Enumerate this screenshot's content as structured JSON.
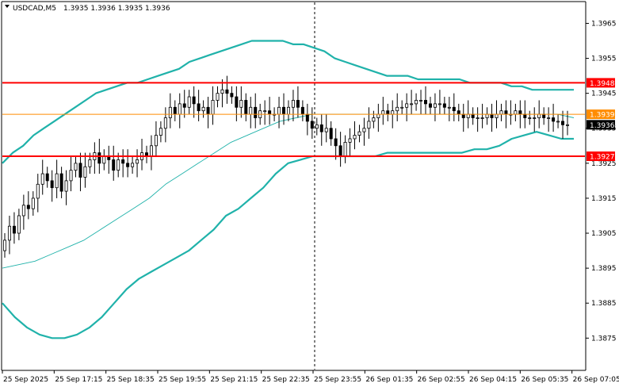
{
  "header": {
    "symbol_timeframe": "USDCAD,M5",
    "ohlc": "1.3935 1.3936 1.3935 1.3936"
  },
  "colors": {
    "background": "#ffffff",
    "candle": "#000000",
    "bollinger": "#20b2aa",
    "moving_average": "#20b2aa",
    "level_line": "#ff0000",
    "bid_line": "#ff8c00",
    "current_price_tag": "#000000",
    "level_tag": "#ff0000",
    "bid_tag": "#ff8c00"
  },
  "chart_data": {
    "type": "candlestick",
    "y_axis": {
      "range": [
        1.3866,
        1.3971
      ],
      "tick_labels": [
        "1.3965",
        "1.3955",
        "1.3945",
        "1.3935",
        "1.3925",
        "1.3915",
        "1.3905",
        "1.3895",
        "1.3885",
        "1.3875"
      ]
    },
    "x_axis": {
      "tick_labels": [
        "25 Sep 2025",
        "25 Sep 17:15",
        "25 Sep 18:35",
        "25 Sep 19:55",
        "25 Sep 21:15",
        "25 Sep 22:35",
        "25 Sep 23:55",
        "26 Sep 01:35",
        "26 Sep 02:55",
        "26 Sep 04:15",
        "26 Sep 05:35",
        "26 Sep 07:05"
      ]
    },
    "levels": [
      {
        "label": "1.3948",
        "value": 1.3948,
        "kind": "resistance"
      },
      {
        "label": "1.3927",
        "value": 1.3927,
        "kind": "support"
      }
    ],
    "bid_line": {
      "label": "1.3939",
      "value": 1.3939
    },
    "current_price": {
      "label": "1.3936",
      "value": 1.3936
    },
    "vertical_separator_label": "25 Sep 23:55",
    "close_series": [
      1.3903,
      1.3907,
      1.3905,
      1.391,
      1.3913,
      1.3912,
      1.3915,
      1.3919,
      1.3922,
      1.392,
      1.3918,
      1.3922,
      1.3917,
      1.392,
      1.3923,
      1.3925,
      1.3921,
      1.3924,
      1.3926,
      1.3928,
      1.3925,
      1.3927,
      1.3926,
      1.3923,
      1.3926,
      1.3925,
      1.3924,
      1.3925,
      1.3926,
      1.3928,
      1.3927,
      1.393,
      1.3933,
      1.3935,
      1.3938,
      1.3941,
      1.3939,
      1.3942,
      1.3941,
      1.3944,
      1.3942,
      1.394,
      1.3941,
      1.3939,
      1.3943,
      1.3945,
      1.3946,
      1.3945,
      1.3944,
      1.3941,
      1.3943,
      1.3939,
      1.3941,
      1.3938,
      1.394,
      1.394,
      1.3939,
      1.3939,
      1.3941,
      1.3939,
      1.3941,
      1.3943,
      1.3941,
      1.3939,
      1.3937,
      1.3935,
      1.3936,
      1.3934,
      1.3935,
      1.3932,
      1.393,
      1.3927,
      1.3931,
      1.3932,
      1.3933,
      1.3934,
      1.3935,
      1.3937,
      1.3938,
      1.3939,
      1.394,
      1.3939,
      1.394,
      1.3941,
      1.3941,
      1.3942,
      1.3942,
      1.3943,
      1.3943,
      1.3942,
      1.3941,
      1.3942,
      1.3942,
      1.3941,
      1.3941,
      1.394,
      1.3939,
      1.3938,
      1.3939,
      1.3938,
      1.3938,
      1.3938,
      1.3939,
      1.3938,
      1.3939,
      1.394,
      1.3939,
      1.3939,
      1.394,
      1.3939,
      1.3938,
      1.3938,
      1.3938,
      1.3939,
      1.3938,
      1.3938,
      1.3937,
      1.3937,
      1.3936,
      1.3936
    ],
    "bollinger_upper": [
      1.3925,
      1.3928,
      1.393,
      1.3933,
      1.3935,
      1.3937,
      1.3939,
      1.3941,
      1.3943,
      1.3945,
      1.3946,
      1.3947,
      1.3948,
      1.3948,
      1.3949,
      1.395,
      1.3951,
      1.3952,
      1.3954,
      1.3955,
      1.3956,
      1.3957,
      1.3958,
      1.3959,
      1.396,
      1.396,
      1.396,
      1.396,
      1.3959,
      1.3959,
      1.3958,
      1.3957,
      1.3955,
      1.3954,
      1.3953,
      1.3952,
      1.3951,
      1.395,
      1.395,
      1.395,
      1.3949,
      1.3949,
      1.3949,
      1.3949,
      1.3949,
      1.3948,
      1.3948,
      1.3948,
      1.3948,
      1.3947,
      1.3947,
      1.3946,
      1.3946,
      1.3946,
      1.3946,
      1.3946
    ],
    "bollinger_lower": [
      1.3885,
      1.3881,
      1.3878,
      1.3876,
      1.3875,
      1.3875,
      1.3876,
      1.3878,
      1.3881,
      1.3885,
      1.3889,
      1.3892,
      1.3894,
      1.3896,
      1.3898,
      1.39,
      1.3903,
      1.3906,
      1.391,
      1.3912,
      1.3915,
      1.3918,
      1.3922,
      1.3925,
      1.3926,
      1.3927,
      1.3927,
      1.3927,
      1.3927,
      1.3927,
      1.3927,
      1.3928,
      1.3928,
      1.3928,
      1.3928,
      1.3928,
      1.3928,
      1.3928,
      1.3929,
      1.3929,
      1.393,
      1.3932,
      1.3933,
      1.3934,
      1.3933,
      1.3932,
      1.3932
    ],
    "moving_average": [
      1.3895,
      1.3896,
      1.3897,
      1.3899,
      1.3901,
      1.3903,
      1.3906,
      1.3909,
      1.3912,
      1.3915,
      1.3919,
      1.3922,
      1.3925,
      1.3928,
      1.3931,
      1.3933,
      1.3935,
      1.3937,
      1.3938,
      1.3939,
      1.3939,
      1.3939,
      1.3939,
      1.3939,
      1.3939,
      1.3939,
      1.3939,
      1.3939,
      1.3939,
      1.3939,
      1.3939,
      1.3939,
      1.3939,
      1.3939,
      1.3939,
      1.3938
    ]
  }
}
